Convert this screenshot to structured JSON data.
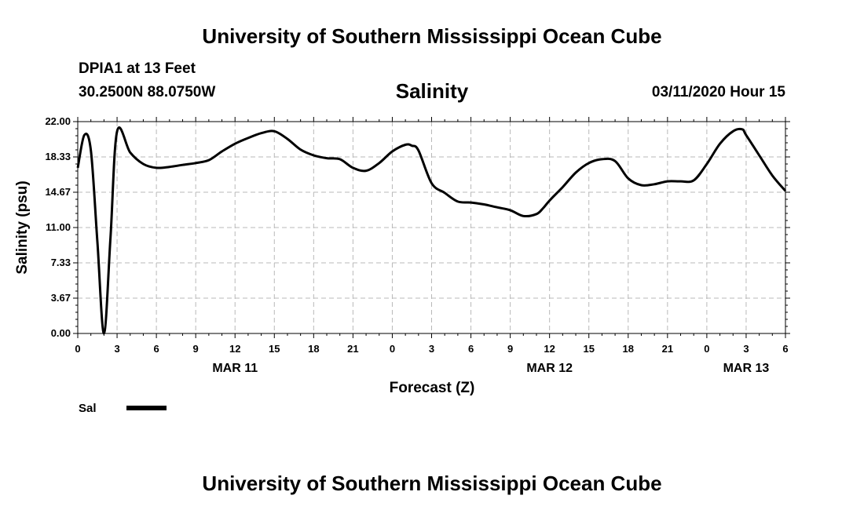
{
  "page": {
    "top_title": "University of Southern Mississippi Ocean Cube",
    "bottom_title": "University of Southern Mississippi Ocean Cube",
    "station": "DPIA1 at 13 Feet",
    "coords": "30.2500N 88.0750W",
    "chart_title": "Salinity",
    "datetime": "03/11/2020 Hour 15"
  },
  "chart_data": {
    "type": "line",
    "title": "Salinity",
    "xlabel": "Forecast (Z)",
    "ylabel": "Salinity (psu)",
    "ylim": [
      0,
      22
    ],
    "xlim": [
      0,
      54
    ],
    "y_ticks": [
      "0.00",
      "3.67",
      "7.33",
      "11.00",
      "14.67",
      "18.33",
      "22.00"
    ],
    "x_ticks": [
      "0",
      "3",
      "6",
      "9",
      "12",
      "15",
      "18",
      "21",
      "0",
      "3",
      "6",
      "9",
      "12",
      "15",
      "18",
      "21",
      "0",
      "3",
      "6"
    ],
    "day_labels": [
      {
        "label": "MAR 11",
        "x": 12
      },
      {
        "label": "MAR 12",
        "x": 36
      },
      {
        "label": "MAR 13",
        "x": 51
      }
    ],
    "grid": true,
    "legend_position": "bottom-left",
    "series": [
      {
        "name": "Sal",
        "color": "#000000",
        "x": [
          0,
          0.5,
          1,
          1.5,
          2,
          2.5,
          3,
          4,
          5,
          6,
          7,
          8,
          9,
          10,
          11,
          12,
          13,
          14,
          15,
          16,
          17,
          18,
          19,
          20,
          21,
          22,
          23,
          24,
          25,
          25.5,
          26,
          27,
          28,
          29,
          30,
          31,
          32,
          33,
          34,
          35,
          35.5,
          36,
          37,
          38,
          39,
          40,
          41,
          42,
          43,
          44,
          45,
          46,
          47,
          48,
          49,
          50,
          50.7,
          51,
          52,
          53,
          54
        ],
        "y": [
          17.2,
          20.6,
          19.0,
          9.5,
          0.0,
          10.0,
          21.0,
          18.8,
          17.6,
          17.2,
          17.3,
          17.5,
          17.7,
          18.0,
          18.9,
          19.7,
          20.3,
          20.8,
          21.0,
          20.2,
          19.1,
          18.5,
          18.2,
          18.1,
          17.2,
          16.9,
          17.7,
          18.9,
          19.6,
          19.5,
          19.0,
          15.6,
          14.6,
          13.7,
          13.6,
          13.4,
          13.1,
          12.8,
          12.2,
          12.4,
          13.0,
          13.8,
          15.2,
          16.7,
          17.7,
          18.1,
          17.9,
          16.1,
          15.4,
          15.5,
          15.8,
          15.8,
          15.9,
          17.6,
          19.7,
          21.0,
          21.2,
          20.6,
          18.5,
          16.4,
          14.8
        ]
      }
    ]
  }
}
